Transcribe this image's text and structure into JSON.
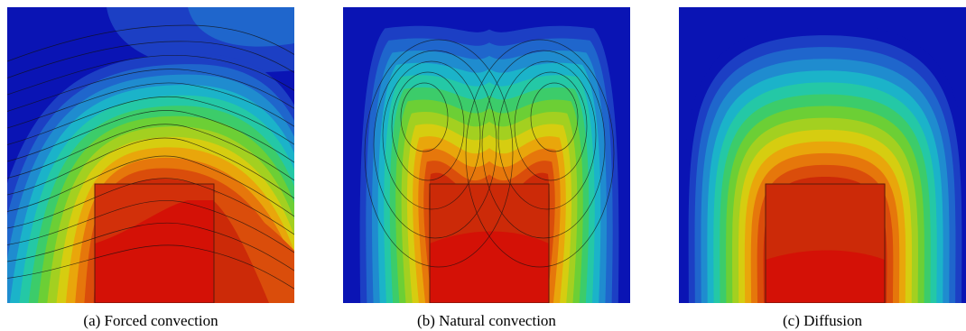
{
  "figure": {
    "panels": [
      {
        "id": "a",
        "caption": "(a) Forced convection"
      },
      {
        "id": "b",
        "caption": "(b) Natural convection"
      },
      {
        "id": "c",
        "caption": "(c) Diffusion"
      }
    ],
    "colormap": [
      "#0a14b4",
      "#1c3fc4",
      "#1f66cc",
      "#1f8ccf",
      "#1bb3c9",
      "#24c8a6",
      "#3ccc6a",
      "#6ccf35",
      "#a3d020",
      "#d6cd10",
      "#e9a60b",
      "#e6770b",
      "#da4d0b",
      "#cc2a08",
      "#d41106"
    ],
    "heater_color": "#cc2a08"
  }
}
